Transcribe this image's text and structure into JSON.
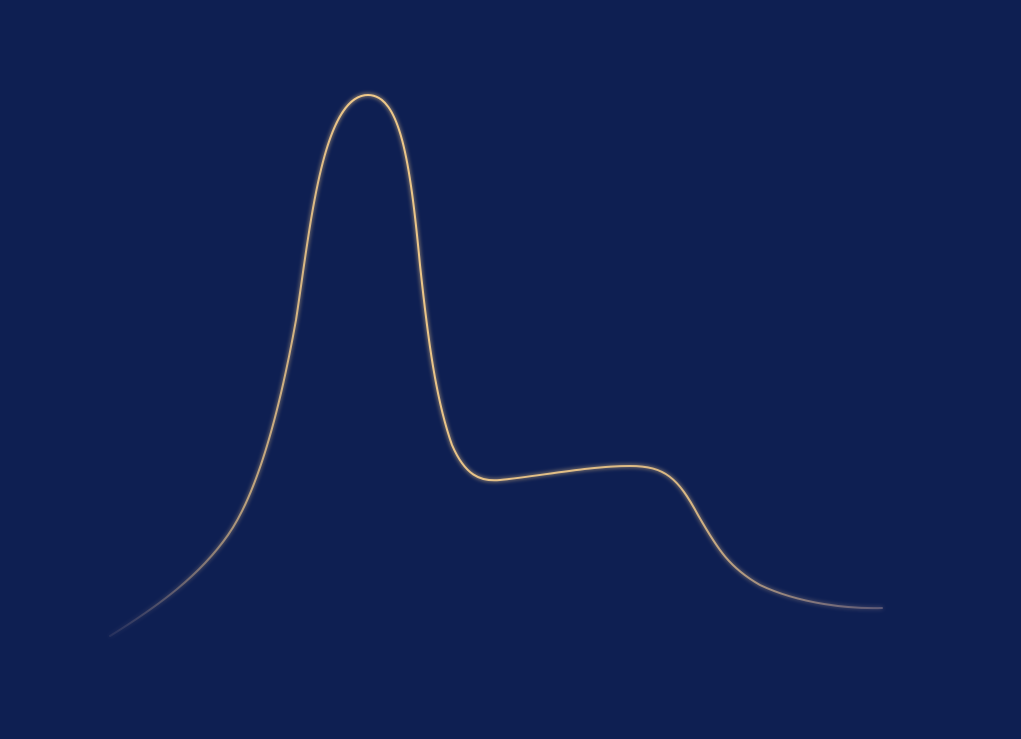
{
  "colors": {
    "background": "#0e1f52",
    "curve_stroke": "#f0c98a",
    "curve_fade": "#8a7a8a",
    "fill_top": "#6a45a6",
    "fill_mid": "#3d2f6a",
    "fill_bottom": "#0e1f52"
  }
}
